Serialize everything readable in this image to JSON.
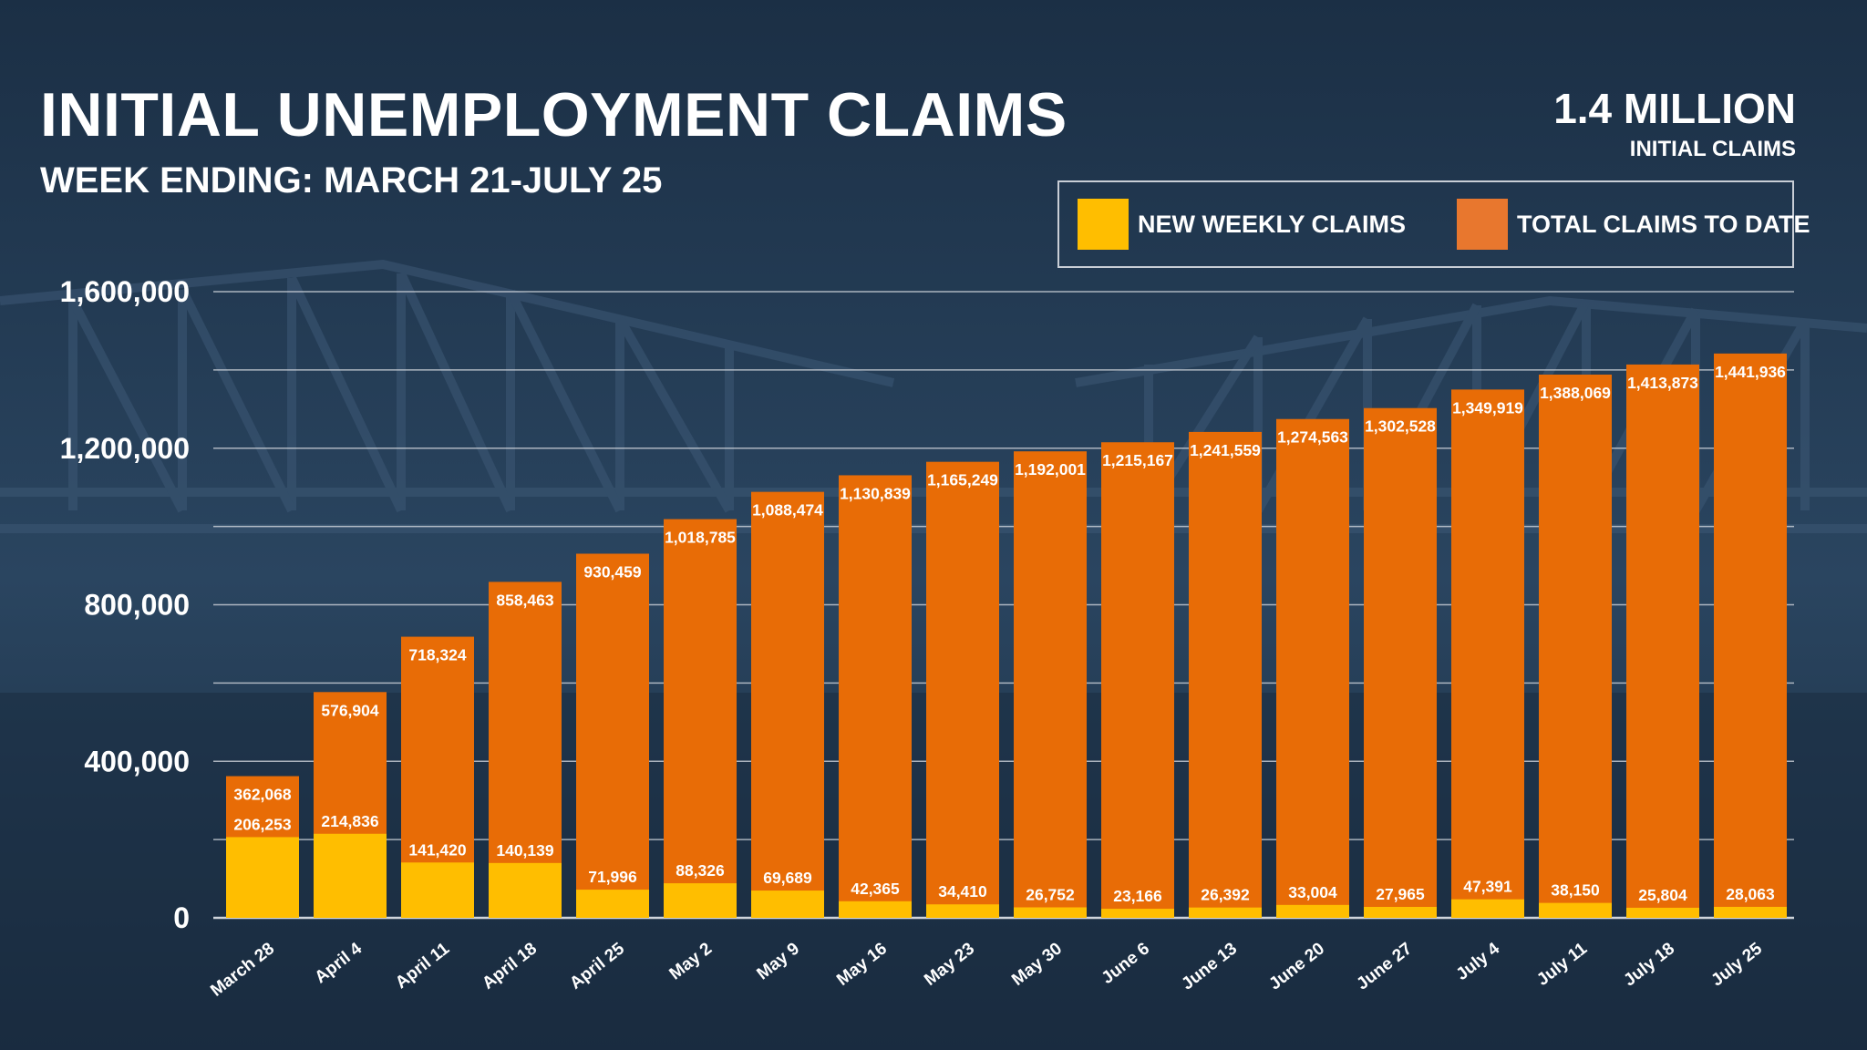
{
  "header": {
    "title": "INITIAL UNEMPLOYMENT CLAIMS",
    "subtitle": "WEEK ENDING: MARCH 21-JULY 25",
    "stat_value": "1.4 MILLION",
    "stat_label": "INITIAL CLAIMS"
  },
  "legend": {
    "new_label": "NEW WEEKLY CLAIMS",
    "total_label": "TOTAL CLAIMS TO DATE"
  },
  "colors": {
    "background": "#1d3147",
    "new_weekly": "#ffbe00",
    "total": "#e86c06",
    "gridline": "#d9dde3"
  },
  "chart_data": {
    "type": "bar",
    "title": "INITIAL UNEMPLOYMENT CLAIMS",
    "subtitle": "WEEK ENDING: MARCH 21-JULY 25",
    "categories": [
      "March 28",
      "April 4",
      "April 11",
      "April 18",
      "April 25",
      "May 2",
      "May 9",
      "May 16",
      "May 23",
      "May 30",
      "June 6",
      "June 13",
      "June 20",
      "June 27",
      "July 4",
      "July 11",
      "July 18",
      "July 25"
    ],
    "series": [
      {
        "name": "TOTAL CLAIMS TO DATE",
        "values": [
          362068,
          576904,
          718324,
          858463,
          930459,
          1018785,
          1088474,
          1130839,
          1165249,
          1192001,
          1215167,
          1241559,
          1274563,
          1302528,
          1349919,
          1388069,
          1413873,
          1441936
        ],
        "labels": [
          "362,068",
          "576,904",
          "718,324",
          "858,463",
          "930,459",
          "1,018,785",
          "1,088,474",
          "1,130,839",
          "1,165,249",
          "1,192,001",
          "1,215,167",
          "1,241,559",
          "1,274,563",
          "1,302,528",
          "1,349,919",
          "1,388,069",
          "1,413,873",
          "1,441,936"
        ]
      },
      {
        "name": "NEW WEEKLY CLAIMS",
        "values": [
          206253,
          214836,
          141420,
          140139,
          71996,
          88326,
          69689,
          42365,
          34410,
          26752,
          23166,
          26392,
          33004,
          27965,
          47391,
          38150,
          25804,
          28063
        ],
        "labels": [
          "206,253",
          "214,836",
          "141,420",
          "140,139",
          "71,996",
          "88,326",
          "69,689",
          "42,365",
          "34,410",
          "26,752",
          "23,166",
          "26,392",
          "33,004",
          "27,965",
          "47,391",
          "38,150",
          "25,804",
          "28,063"
        ]
      }
    ],
    "y_ticks": [
      0,
      400000,
      800000,
      1200000,
      1600000
    ],
    "y_tick_labels": [
      "0",
      "400,000",
      "800,000",
      "1,200,000",
      "1,600,000"
    ],
    "ylim": [
      0,
      1600000
    ],
    "grid": true,
    "legend_position": "top-right"
  }
}
